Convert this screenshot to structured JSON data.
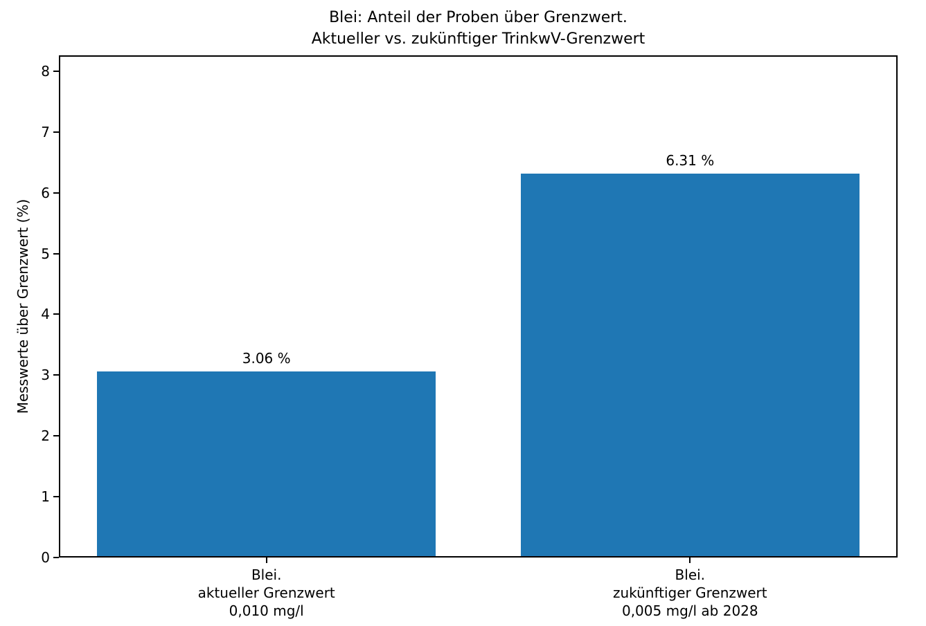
{
  "title": {
    "line1": "Blei: Anteil der Proben über Grenzwert.",
    "line2": "Aktueller vs. zukünftiger TrinkwV-Grenzwert"
  },
  "chart_data": {
    "type": "bar",
    "title": "Blei: Anteil der Proben über Grenzwert.\nAktueller vs. zukünftiger TrinkwV-Grenzwert",
    "categories": [
      "Blei.\naktueller Grenzwert\n0,010 mg/l",
      "Blei.\nzukünftiger Grenzwert\n0,005 mg/l ab 2028"
    ],
    "values": [
      3.06,
      6.31
    ],
    "bar_labels": [
      "3.06 %",
      "6.31 %"
    ],
    "xlabel": "",
    "ylabel": "Messwerte über Grenzwert (%)",
    "ylim": [
      0,
      8.26
    ],
    "yticks": [
      0,
      1,
      2,
      3,
      4,
      5,
      6,
      7,
      8
    ],
    "bar_color": "#1f77b4",
    "grid": false,
    "legend": null
  }
}
